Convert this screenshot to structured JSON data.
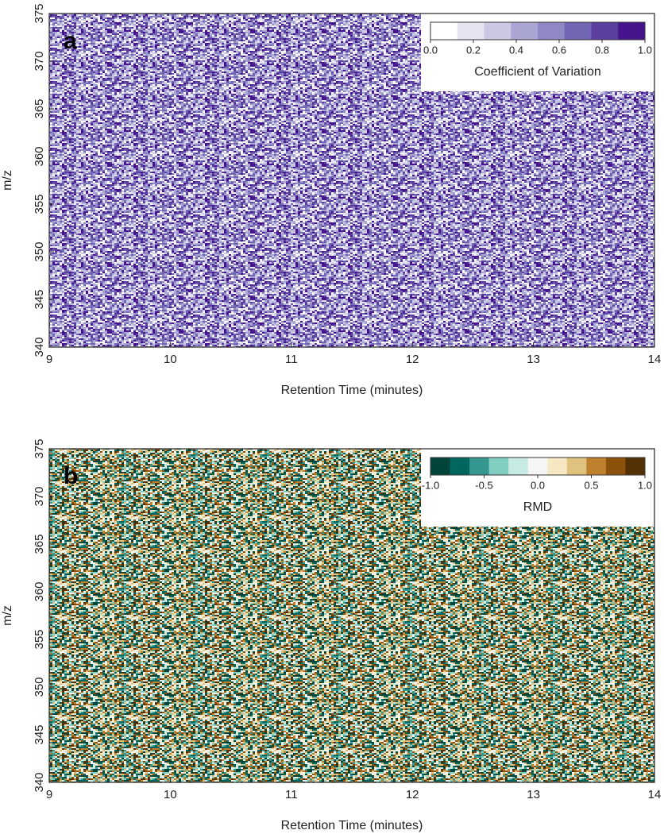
{
  "chart_data": [
    {
      "type": "heatmap",
      "panel_label": "a",
      "x_label": "Retention Time (minutes)",
      "y_label": "m/z",
      "xlim": [
        9,
        14
      ],
      "xticks": [
        9,
        10,
        11,
        12,
        13,
        14
      ],
      "ylim": [
        340,
        375
      ],
      "yticks": [
        340,
        345,
        350,
        355,
        360,
        365,
        370,
        375
      ],
      "colorbar": {
        "label": "Coefficient of Variation",
        "lim": [
          0,
          1
        ],
        "ticks": [
          {
            "value": 0,
            "label": "0.0"
          },
          0.2,
          0.4,
          0.6,
          0.8,
          {
            "value": 1,
            "label": "1.0"
          }
        ],
        "colors": [
          "#ffffff",
          "#e6e4f2",
          "#cbc8e4",
          "#aaa6d4",
          "#8f88c5",
          "#7265b3",
          "#5b3f9f",
          "#46148c"
        ]
      }
    },
    {
      "type": "heatmap",
      "panel_label": "b",
      "x_label": "Retention Time (minutes)",
      "y_label": "m/z",
      "xlim": [
        9,
        14
      ],
      "xticks": [
        9,
        10,
        11,
        12,
        13,
        14
      ],
      "ylim": [
        340,
        375
      ],
      "yticks": [
        340,
        345,
        350,
        355,
        360,
        365,
        370,
        375
      ],
      "colorbar": {
        "label": "RMD",
        "lim": [
          -1,
          1
        ],
        "ticks": [
          {
            "value": -1,
            "label": "-1.0"
          },
          -0.5,
          {
            "value": 0,
            "label": "0.0"
          },
          0.5,
          {
            "value": 1,
            "label": "1.0"
          }
        ],
        "colors": [
          "#00443a",
          "#01665e",
          "#35978f",
          "#80cdc1",
          "#c7eae5",
          "#f5f5f5",
          "#f6e8c3",
          "#dfc27d",
          "#bf812d",
          "#8c510a",
          "#543005"
        ]
      }
    }
  ]
}
